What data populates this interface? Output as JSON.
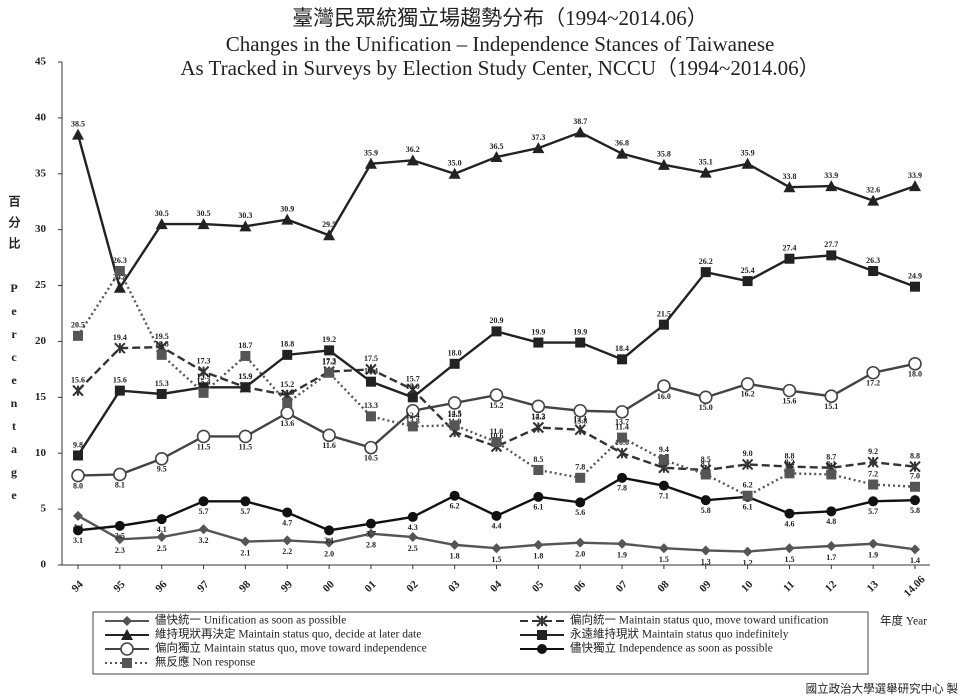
{
  "chart_data": {
    "type": "line",
    "title": "臺灣民眾統獨立場趨勢分布（1994~2014.06）",
    "subtitle": "Changes in the Unification – Independence Stances of Taiwanese",
    "subtitle2": "As Tracked in Surveys by Election Study Center, NCCU（1994~2014.06）",
    "ylabel": "百分比 Percentage",
    "xlabel": "年度 Year",
    "source": "國立政治大學選舉研究中心 製",
    "categories": [
      "94",
      "95",
      "96",
      "97",
      "98",
      "99",
      "00",
      "01",
      "02",
      "03",
      "04",
      "05",
      "06",
      "07",
      "08",
      "09",
      "10",
      "11",
      "12",
      "13",
      "14.06"
    ],
    "ylim": [
      0,
      45
    ],
    "yticks": [
      0,
      5,
      10,
      15,
      20,
      25,
      30,
      35,
      40,
      45
    ],
    "series": [
      {
        "name": "儘快統一 Unification as soon as possible",
        "color": "#555555",
        "marker": "diamond",
        "line_style": "solid",
        "values": [
          4.4,
          2.3,
          2.5,
          3.2,
          2.1,
          2.2,
          2.0,
          2.8,
          2.5,
          1.8,
          1.5,
          1.8,
          2.0,
          1.9,
          1.5,
          1.3,
          1.2,
          1.5,
          1.7,
          1.9,
          1.4
        ],
        "value_labels": [
          "4.4",
          "2.3",
          "2.5",
          "3.2",
          "2.1",
          "2.2",
          "2.0",
          "2.8",
          "2.5",
          "1.8",
          "1.5",
          "1.8",
          "2.0",
          "1.9",
          "1.5",
          "1.3",
          "1.2",
          "1.5",
          "1.7",
          "1.9",
          "1.4"
        ]
      },
      {
        "name": "偏向統一 Maintain status quo, move toward unification",
        "color": "#333333",
        "marker": "star",
        "line_style": "dash",
        "values": [
          15.6,
          19.4,
          19.5,
          17.3,
          15.9,
          15.2,
          17.3,
          17.5,
          15.7,
          11.9,
          10.6,
          12.3,
          12.1,
          10.0,
          8.7,
          8.5,
          9.0,
          8.8,
          8.7,
          9.2,
          8.8
        ],
        "value_labels": [
          "15.6",
          "19.4",
          "19.5",
          "17.3",
          "15.9",
          "15.2",
          "17.3",
          "17.5",
          "15.7",
          "11.9",
          "10.6",
          "12.3",
          "12.1",
          "10.0",
          "8.7",
          "8.5",
          "9.0",
          "8.8",
          "8.7",
          "9.2",
          "8.8"
        ]
      },
      {
        "name": "維持現狀再決定 Maintain status quo, decide at later date",
        "color": "#222222",
        "marker": "triangle",
        "line_style": "solid",
        "values": [
          38.5,
          24.8,
          30.5,
          30.5,
          30.3,
          30.9,
          29.5,
          35.9,
          36.2,
          35.0,
          36.5,
          37.3,
          38.7,
          36.8,
          35.8,
          35.1,
          35.9,
          33.8,
          33.9,
          32.6,
          33.9
        ],
        "value_labels": [
          "38.5",
          "24.8",
          "30.5",
          "30.5",
          "30.3",
          "30.9",
          "29.5",
          "35.9",
          "36.2",
          "35.0",
          "36.5",
          "37.3",
          "38.7",
          "36.8",
          "35.8",
          "35.1",
          "35.9",
          "33.8",
          "33.9",
          "32.6",
          "33.9"
        ]
      },
      {
        "name": "永遠維持現狀 Maintain status quo indefinitely",
        "color": "#222222",
        "marker": "square",
        "line_style": "solid",
        "values": [
          9.8,
          15.6,
          15.3,
          15.9,
          15.9,
          18.8,
          19.2,
          16.4,
          15.0,
          18.0,
          20.9,
          19.9,
          19.9,
          18.4,
          21.5,
          26.2,
          25.4,
          27.4,
          27.7,
          26.3,
          24.9
        ],
        "value_labels": [
          "9.8",
          "15.6",
          "15.3",
          "15.9",
          "15.9",
          "18.8",
          "19.2",
          "16.4",
          "15.0",
          "18.0",
          "20.9",
          "19.9",
          "19.9",
          "18.4",
          "21.5",
          "26.2",
          "25.4",
          "27.4",
          "27.7",
          "26.3",
          "24.9"
        ]
      },
      {
        "name": "偏向獨立 Maintain status quo, move toward independence",
        "color": "#444444",
        "marker": "open-circle",
        "line_style": "solid",
        "values": [
          8.0,
          8.1,
          9.5,
          11.5,
          11.5,
          13.6,
          11.6,
          10.5,
          13.8,
          14.5,
          15.2,
          14.2,
          13.8,
          13.7,
          16.0,
          15.0,
          16.2,
          15.6,
          15.1,
          17.2,
          18.0
        ],
        "value_labels": [
          "8.0",
          "8.1",
          "9.5",
          "11.5",
          "11.5",
          "13.6",
          "11.6",
          "10.5",
          "13.8",
          "14.5",
          "15.2",
          "14.2",
          "13.8",
          "13.7",
          "16.0",
          "15.0",
          "16.2",
          "15.6",
          "15.1",
          "17.2",
          "18.0"
        ]
      },
      {
        "name": "儘快獨立 Independence as soon as possible",
        "color": "#111111",
        "marker": "circle",
        "line_style": "solid",
        "values": [
          3.1,
          3.5,
          4.1,
          5.7,
          5.7,
          4.7,
          3.1,
          3.7,
          4.3,
          6.2,
          4.4,
          6.1,
          5.6,
          7.8,
          7.1,
          5.8,
          6.1,
          4.6,
          4.8,
          5.7,
          5.8
        ],
        "value_labels": [
          "3.1",
          "3.5",
          "4.1",
          "5.7",
          "5.7",
          "4.7",
          "3.1",
          "3.7",
          "4.3",
          "6.2",
          "4.4",
          "6.1",
          "5.6",
          "7.8",
          "7.1",
          "5.8",
          "6.1",
          "4.6",
          "4.8",
          "5.7",
          "5.8"
        ]
      },
      {
        "name": "無反應 Non response",
        "color": "#555555",
        "marker": "square",
        "line_style": "dot",
        "values": [
          20.5,
          26.3,
          18.8,
          15.4,
          18.7,
          14.5,
          17.2,
          13.3,
          12.4,
          12.5,
          11.0,
          8.5,
          7.8,
          11.4,
          9.4,
          8.1,
          6.2,
          8.2,
          8.1,
          7.2,
          7.0
        ],
        "value_labels": [
          "20.5",
          "26.3",
          "18.8",
          "15.4",
          "18.7",
          "14.5",
          "17.2",
          "13.3",
          "12.4",
          "12.5",
          "11.0",
          "8.5",
          "7.8",
          "11.4",
          "9.4",
          "8.1",
          "6.2",
          "8.2",
          "8.1",
          "7.2",
          "7.0"
        ]
      }
    ]
  }
}
